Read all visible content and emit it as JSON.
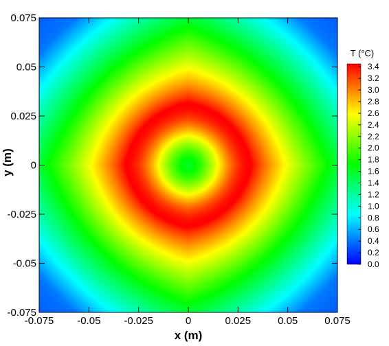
{
  "chart_data": {
    "type": "heatmap",
    "title": "",
    "xlabel": "x (m)",
    "ylabel": "y (m)",
    "xlim": [
      -0.075,
      0.075
    ],
    "ylim": [
      -0.075,
      0.075
    ],
    "x_ticks": [
      "-0.075",
      "-0.05",
      "-0.025",
      "0",
      "0.025",
      "0.05",
      "0.075"
    ],
    "y_ticks": [
      "-0.075",
      "-0.05",
      "-0.025",
      "0",
      "0.025",
      "0.05",
      "0.075"
    ],
    "grid": false,
    "colorbar": {
      "title": "T (°C)",
      "range": [
        0.0,
        3.4
      ],
      "ticks": [
        "0.0",
        "0.2",
        "0.4",
        "0.6",
        "0.8",
        "1.0",
        "1.2",
        "1.4",
        "1.6",
        "1.8",
        "2.0",
        "2.2",
        "2.4",
        "2.6",
        "2.8",
        "3.0",
        "3.2",
        "3.4"
      ],
      "colors": [
        "#0000ff",
        "#00ffff",
        "#00ff00",
        "#ffff00",
        "#ff0000"
      ]
    },
    "field": {
      "description_values": "Temperature field with an annular hot ring centered at origin",
      "center_T": 1.6,
      "ring_peak_T": 3.4,
      "ring_radius": 0.032,
      "edge_T": 0.4,
      "corner_T": 0.2
    }
  }
}
